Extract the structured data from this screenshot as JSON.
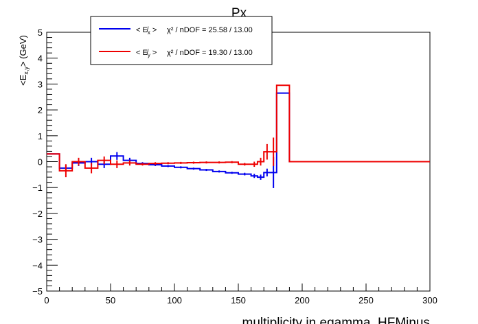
{
  "chart_data": {
    "type": "line",
    "title": "Px",
    "xlabel": "multiplicity in egamma_HFMinus",
    "ylabel_main": "<E",
    "ylabel_sub": "x,y",
    "ylabel_unit": "> (GeV)",
    "xlim": [
      0,
      300
    ],
    "ylim": [
      -5,
      5
    ],
    "x_ticks": [
      0,
      50,
      100,
      150,
      200,
      250,
      300
    ],
    "y_ticks": [
      -5,
      -4,
      -3,
      -2,
      -1,
      0,
      1,
      2,
      3,
      4,
      5
    ],
    "grid": false,
    "legend_position": "top-left",
    "series": [
      {
        "name": "< E̸x > χ² / nDOF = 25.58 / 13.00",
        "legend_text": "χ² / nDOF = 25.58 / 13.00",
        "legend_symbol": "x",
        "color": "#0000ee",
        "bins": [
          {
            "lo": 0,
            "hi": 10,
            "y": 0.3,
            "err": 0.0
          },
          {
            "lo": 10,
            "hi": 20,
            "y": -0.25,
            "err": 0.12
          },
          {
            "lo": 20,
            "hi": 30,
            "y": -0.05,
            "err": 0.12
          },
          {
            "lo": 30,
            "hi": 40,
            "y": 0.0,
            "err": 0.15
          },
          {
            "lo": 40,
            "hi": 50,
            "y": -0.1,
            "err": 0.15
          },
          {
            "lo": 50,
            "hi": 60,
            "y": 0.22,
            "err": 0.15
          },
          {
            "lo": 60,
            "hi": 70,
            "y": 0.05,
            "err": 0.1
          },
          {
            "lo": 70,
            "hi": 80,
            "y": -0.07,
            "err": 0.05
          },
          {
            "lo": 80,
            "hi": 90,
            "y": -0.12,
            "err": 0.05
          },
          {
            "lo": 90,
            "hi": 100,
            "y": -0.17,
            "err": 0.04
          },
          {
            "lo": 100,
            "hi": 110,
            "y": -0.22,
            "err": 0.04
          },
          {
            "lo": 110,
            "hi": 120,
            "y": -0.27,
            "err": 0.04
          },
          {
            "lo": 120,
            "hi": 130,
            "y": -0.32,
            "err": 0.04
          },
          {
            "lo": 130,
            "hi": 140,
            "y": -0.38,
            "err": 0.04
          },
          {
            "lo": 140,
            "hi": 150,
            "y": -0.43,
            "err": 0.04
          },
          {
            "lo": 150,
            "hi": 160,
            "y": -0.48,
            "err": 0.05
          },
          {
            "lo": 160,
            "hi": 165,
            "y": -0.55,
            "err": 0.08
          },
          {
            "lo": 165,
            "hi": 170,
            "y": -0.6,
            "err": 0.1
          },
          {
            "lo": 170,
            "hi": 175,
            "y": -0.42,
            "err": 0.15
          },
          {
            "lo": 175,
            "hi": 180,
            "y": -0.42,
            "err": 0.6
          },
          {
            "lo": 180,
            "hi": 190,
            "y": 2.65,
            "err": 0.0
          },
          {
            "lo": 190,
            "hi": 300,
            "y": 0.0,
            "err": 0.0
          }
        ]
      },
      {
        "name": "< E̸y > χ² / nDOF = 19.30 / 13.00",
        "legend_text": "χ² / nDOF = 19.30 / 13.00",
        "legend_symbol": "y",
        "color": "#ee0000",
        "bins": [
          {
            "lo": 0,
            "hi": 10,
            "y": 0.3,
            "err": 0.0
          },
          {
            "lo": 10,
            "hi": 20,
            "y": -0.35,
            "err": 0.25
          },
          {
            "lo": 20,
            "hi": 30,
            "y": 0.0,
            "err": 0.15
          },
          {
            "lo": 30,
            "hi": 40,
            "y": -0.25,
            "err": 0.2
          },
          {
            "lo": 40,
            "hi": 50,
            "y": 0.05,
            "err": 0.15
          },
          {
            "lo": 50,
            "hi": 60,
            "y": -0.1,
            "err": 0.15
          },
          {
            "lo": 60,
            "hi": 70,
            "y": -0.05,
            "err": 0.1
          },
          {
            "lo": 70,
            "hi": 80,
            "y": -0.1,
            "err": 0.05
          },
          {
            "lo": 80,
            "hi": 90,
            "y": -0.07,
            "err": 0.05
          },
          {
            "lo": 90,
            "hi": 100,
            "y": -0.06,
            "err": 0.04
          },
          {
            "lo": 100,
            "hi": 110,
            "y": -0.05,
            "err": 0.04
          },
          {
            "lo": 110,
            "hi": 120,
            "y": -0.04,
            "err": 0.04
          },
          {
            "lo": 120,
            "hi": 130,
            "y": -0.03,
            "err": 0.04
          },
          {
            "lo": 130,
            "hi": 140,
            "y": -0.03,
            "err": 0.04
          },
          {
            "lo": 140,
            "hi": 150,
            "y": -0.02,
            "err": 0.04
          },
          {
            "lo": 150,
            "hi": 160,
            "y": -0.1,
            "err": 0.05
          },
          {
            "lo": 160,
            "hi": 165,
            "y": -0.1,
            "err": 0.1
          },
          {
            "lo": 165,
            "hi": 170,
            "y": 0.0,
            "err": 0.15
          },
          {
            "lo": 170,
            "hi": 175,
            "y": 0.38,
            "err": 0.3
          },
          {
            "lo": 175,
            "hi": 180,
            "y": 0.38,
            "err": 0.55
          },
          {
            "lo": 180,
            "hi": 190,
            "y": 2.95,
            "err": 0.0
          },
          {
            "lo": 190,
            "hi": 300,
            "y": 0.0,
            "err": 0.0
          }
        ]
      }
    ]
  }
}
